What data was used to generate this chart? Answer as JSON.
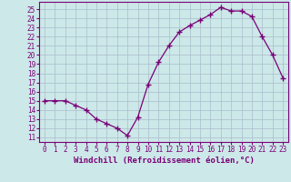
{
  "x": [
    0,
    1,
    2,
    3,
    4,
    5,
    6,
    7,
    8,
    9,
    10,
    11,
    12,
    13,
    14,
    15,
    16,
    17,
    18,
    19,
    20,
    21,
    22,
    23
  ],
  "y": [
    15,
    15,
    15,
    14.5,
    14,
    13,
    12.5,
    12,
    11.2,
    13.2,
    16.8,
    19.2,
    21.0,
    22.5,
    23.2,
    23.8,
    24.4,
    25.2,
    24.8,
    24.8,
    24.2,
    22.0,
    20.0,
    17.5
  ],
  "line_color": "#7B0077",
  "marker": "+",
  "marker_color": "#7B0077",
  "bg_color": "#cce8e8",
  "grid_color": "#aabccc",
  "xlabel": "Windchill (Refroidissement éolien,°C)",
  "xlabel_color": "#7B0077",
  "ylabel_ticks": [
    11,
    12,
    13,
    14,
    15,
    16,
    17,
    18,
    19,
    20,
    21,
    22,
    23,
    24,
    25
  ],
  "ylim": [
    10.5,
    25.8
  ],
  "xlim": [
    -0.5,
    23.5
  ],
  "tick_color": "#7B0077",
  "axis_color": "#7B0077",
  "font_family": "monospace",
  "tick_fontsize": 5.5,
  "xlabel_fontsize": 6.5
}
